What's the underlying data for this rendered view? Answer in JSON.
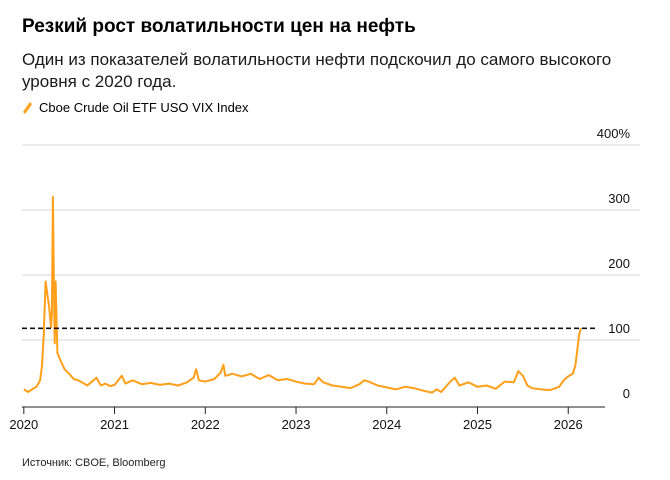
{
  "title": "Резкий рост волатильности цен на нефть",
  "subtitle": "Один из показателей волатильности нефти подскочил до самого высокого уровня с 2020 года.",
  "source": "Источник: CBOE, Bloomberg",
  "colors": {
    "series": "#ff9f1a",
    "grid": "#d6d6d6",
    "reference": "#111111"
  },
  "chart_data": {
    "type": "line",
    "series": [
      {
        "name": "Cboe Crude Oil ETF USO VIX Index",
        "points": [
          [
            2020.0,
            24
          ],
          [
            2020.05,
            20
          ],
          [
            2020.1,
            25
          ],
          [
            2020.14,
            28
          ],
          [
            2020.18,
            38
          ],
          [
            2020.2,
            60
          ],
          [
            2020.22,
            110
          ],
          [
            2020.24,
            190
          ],
          [
            2020.26,
            170
          ],
          [
            2020.28,
            150
          ],
          [
            2020.3,
            120
          ],
          [
            2020.31,
            140
          ],
          [
            2020.32,
            320
          ],
          [
            2020.33,
            200
          ],
          [
            2020.34,
            95
          ],
          [
            2020.35,
            190
          ],
          [
            2020.37,
            80
          ],
          [
            2020.4,
            70
          ],
          [
            2020.45,
            55
          ],
          [
            2020.5,
            48
          ],
          [
            2020.55,
            40
          ],
          [
            2020.6,
            38
          ],
          [
            2020.65,
            34
          ],
          [
            2020.7,
            30
          ],
          [
            2020.75,
            36
          ],
          [
            2020.8,
            42
          ],
          [
            2020.85,
            30
          ],
          [
            2020.9,
            33
          ],
          [
            2020.95,
            29
          ],
          [
            2021.0,
            31
          ],
          [
            2021.08,
            45
          ],
          [
            2021.12,
            33
          ],
          [
            2021.2,
            38
          ],
          [
            2021.3,
            32
          ],
          [
            2021.4,
            34
          ],
          [
            2021.5,
            31
          ],
          [
            2021.6,
            33
          ],
          [
            2021.7,
            30
          ],
          [
            2021.8,
            35
          ],
          [
            2021.87,
            42
          ],
          [
            2021.9,
            55
          ],
          [
            2021.93,
            38
          ],
          [
            2022.0,
            36
          ],
          [
            2022.1,
            40
          ],
          [
            2022.17,
            50
          ],
          [
            2022.2,
            62
          ],
          [
            2022.22,
            45
          ],
          [
            2022.3,
            48
          ],
          [
            2022.4,
            44
          ],
          [
            2022.5,
            48
          ],
          [
            2022.6,
            40
          ],
          [
            2022.7,
            46
          ],
          [
            2022.8,
            38
          ],
          [
            2022.9,
            40
          ],
          [
            2023.0,
            36
          ],
          [
            2023.1,
            33
          ],
          [
            2023.2,
            32
          ],
          [
            2023.25,
            42
          ],
          [
            2023.3,
            35
          ],
          [
            2023.4,
            30
          ],
          [
            2023.5,
            28
          ],
          [
            2023.6,
            26
          ],
          [
            2023.7,
            32
          ],
          [
            2023.75,
            38
          ],
          [
            2023.8,
            36
          ],
          [
            2023.9,
            30
          ],
          [
            2024.0,
            27
          ],
          [
            2024.1,
            24
          ],
          [
            2024.2,
            28
          ],
          [
            2024.3,
            26
          ],
          [
            2024.4,
            22
          ],
          [
            2024.5,
            19
          ],
          [
            2024.55,
            24
          ],
          [
            2024.6,
            20
          ],
          [
            2024.7,
            36
          ],
          [
            2024.75,
            42
          ],
          [
            2024.8,
            30
          ],
          [
            2024.9,
            35
          ],
          [
            2025.0,
            28
          ],
          [
            2025.1,
            30
          ],
          [
            2025.2,
            25
          ],
          [
            2025.3,
            36
          ],
          [
            2025.4,
            35
          ],
          [
            2025.45,
            52
          ],
          [
            2025.5,
            45
          ],
          [
            2025.55,
            30
          ],
          [
            2025.6,
            26
          ],
          [
            2025.7,
            24
          ],
          [
            2025.8,
            23
          ],
          [
            2025.9,
            28
          ],
          [
            2025.95,
            38
          ],
          [
            2026.0,
            44
          ],
          [
            2026.05,
            48
          ],
          [
            2026.08,
            62
          ],
          [
            2026.12,
            108
          ],
          [
            2026.14,
            118
          ]
        ]
      }
    ],
    "reference_line": {
      "y": 118,
      "style": "dashed"
    },
    "x_ticks": [
      "2020",
      "2021",
      "2022",
      "2023",
      "2024",
      "2025",
      "2026"
    ],
    "y_tick_labels": [
      "0",
      "100",
      "200",
      "300",
      "400%"
    ],
    "xlim": [
      2019.98,
      2026.35
    ],
    "ylim": [
      0,
      400
    ],
    "grid": "horizontal",
    "legend_position": "top-left"
  }
}
